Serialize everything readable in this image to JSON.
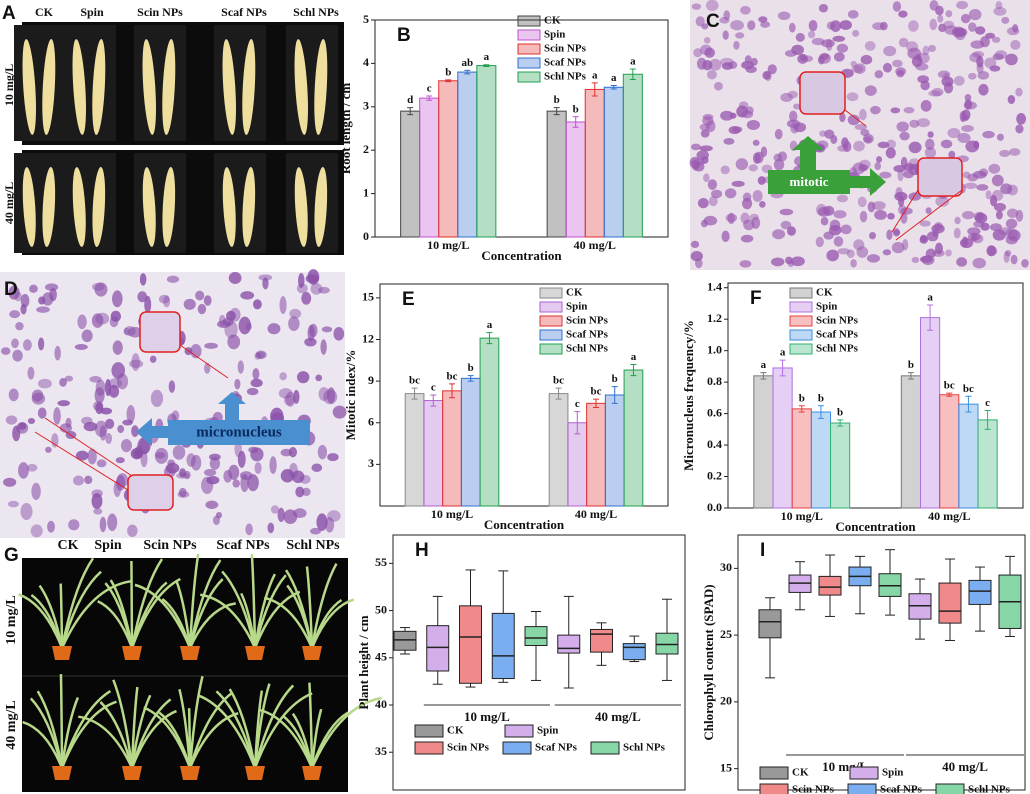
{
  "images": [
    {
      "panel": "A",
      "columns": [
        "CK",
        "Spin",
        "Scin NPs",
        "Scaf NPs",
        "Schl NPs"
      ],
      "rows": [
        "10 mg/L",
        "40 mg/L"
      ]
    },
    {
      "panel": "C",
      "label": "mitotic"
    },
    {
      "panel": "D",
      "label": "micronucleus"
    },
    {
      "panel": "G",
      "columns": [
        "CK",
        "Spin",
        "Scin NPs",
        "Scaf NPs",
        "Schl NPs"
      ],
      "rows": [
        "10 mg/L",
        "40 mg/L"
      ]
    }
  ],
  "chart_data": [
    {
      "type": "bar",
      "panel": "B",
      "x_label": "Concentration",
      "y_label": "Root length / cm",
      "categories": [
        "10 mg/L",
        "40 mg/L"
      ],
      "ylim": [
        0,
        5
      ],
      "yticks": [
        0,
        1,
        2,
        3,
        4,
        5
      ],
      "legend": "top",
      "series": [
        {
          "name": "CK",
          "color": "#444444",
          "values": [
            2.9,
            2.9
          ],
          "errors": [
            0.08,
            0.08
          ],
          "letters": [
            "d",
            "b"
          ]
        },
        {
          "name": "Spin",
          "color": "#c050d0",
          "values": [
            3.2,
            2.65
          ],
          "errors": [
            0.05,
            0.12
          ],
          "letters": [
            "c",
            "b"
          ]
        },
        {
          "name": "Scin NPs",
          "color": "#e03030",
          "values": [
            3.6,
            3.4
          ],
          "errors": [
            0.02,
            0.15
          ],
          "letters": [
            "b",
            "a"
          ]
        },
        {
          "name": "Scaf NPs",
          "color": "#2f6fd0",
          "values": [
            3.8,
            3.45
          ],
          "errors": [
            0.04,
            0.04
          ],
          "letters": [
            "ab",
            "a"
          ]
        },
        {
          "name": "Schl NPs",
          "color": "#20a050",
          "values": [
            3.95,
            3.75
          ],
          "errors": [
            0.02,
            0.12
          ],
          "letters": [
            "a",
            "a"
          ]
        }
      ]
    },
    {
      "type": "bar",
      "panel": "E",
      "x_label": "Concentration",
      "y_label": "Mitotic index/%",
      "categories": [
        "10 mg/L",
        "40 mg/L"
      ],
      "ylim": [
        0,
        16
      ],
      "yticks": [
        3,
        6,
        9,
        12,
        15
      ],
      "legend": "top-right",
      "series": [
        {
          "name": "CK",
          "color": "#888888",
          "values": [
            8.1,
            8.1
          ],
          "errors": [
            0.4,
            0.4
          ],
          "letters": [
            "bc",
            "bc"
          ]
        },
        {
          "name": "Spin",
          "color": "#b060d0",
          "values": [
            7.6,
            6.0
          ],
          "errors": [
            0.4,
            0.8
          ],
          "letters": [
            "c",
            "c"
          ]
        },
        {
          "name": "Scin NPs",
          "color": "#e03030",
          "values": [
            8.3,
            7.4
          ],
          "errors": [
            0.5,
            0.3
          ],
          "letters": [
            "bc",
            "bc"
          ]
        },
        {
          "name": "Scaf NPs",
          "color": "#2f6fd0",
          "values": [
            9.2,
            8.0
          ],
          "errors": [
            0.2,
            0.6
          ],
          "letters": [
            "b",
            "b"
          ]
        },
        {
          "name": "Schl NPs",
          "color": "#20a050",
          "values": [
            12.1,
            9.8
          ],
          "errors": [
            0.4,
            0.4
          ],
          "letters": [
            "a",
            "a"
          ]
        }
      ]
    },
    {
      "type": "bar",
      "panel": "F",
      "x_label": "Concentration",
      "y_label": "Micronucleus frequency/%",
      "categories": [
        "10 mg/L",
        "40 mg/L"
      ],
      "ylim": [
        0,
        1.43
      ],
      "yticks": [
        {
          "value": 0,
          "label": "0.0"
        },
        0.2,
        0.4,
        0.6,
        0.8,
        {
          "value": 1,
          "label": "1.0"
        },
        1.2,
        1.4
      ],
      "legend": "top",
      "series": [
        {
          "name": "CK",
          "color": "#777777",
          "values": [
            0.84,
            0.84
          ],
          "errors": [
            0.02,
            0.02
          ],
          "letters": [
            "a",
            "b"
          ]
        },
        {
          "name": "Spin",
          "color": "#b070e0",
          "values": [
            0.89,
            1.21
          ],
          "errors": [
            0.05,
            0.08
          ],
          "letters": [
            "a",
            "a"
          ]
        },
        {
          "name": "Scin NPs",
          "color": "#e84040",
          "values": [
            0.63,
            0.72
          ],
          "errors": [
            0.02,
            0.01
          ],
          "letters": [
            "b",
            "bc"
          ]
        },
        {
          "name": "Scaf NPs",
          "color": "#3a8ee0",
          "values": [
            0.61,
            0.66
          ],
          "errors": [
            0.04,
            0.05
          ],
          "letters": [
            "b",
            "bc"
          ]
        },
        {
          "name": "Schl NPs",
          "color": "#30b070",
          "values": [
            0.54,
            0.56
          ],
          "errors": [
            0.02,
            0.06
          ],
          "letters": [
            "b",
            "c"
          ]
        }
      ]
    },
    {
      "type": "box",
      "panel": "H",
      "y_label": "Plant height / cm",
      "groups": [
        "10 mg/L",
        "40 mg/L"
      ],
      "ylim": [
        31,
        58
      ],
      "yticks": [
        35,
        40,
        45,
        50,
        55
      ],
      "legend": "bottom",
      "series": [
        {
          "name": "CK",
          "color": "#999999",
          "boxes": [
            {
              "min": 45.4,
              "q1": 45.8,
              "median": 46.9,
              "q3": 47.8,
              "max": 48.2
            }
          ]
        },
        {
          "name": "Spin",
          "color": "#d4aeea",
          "boxes": [
            {
              "min": 42.2,
              "q1": 43.6,
              "median": 46.1,
              "q3": 48.4,
              "max": 51.5
            },
            {
              "min": 41.8,
              "q1": 45.5,
              "median": 46.0,
              "q3": 47.4,
              "max": 51.5
            }
          ]
        },
        {
          "name": "Scin NPs",
          "color": "#f08a8a",
          "boxes": [
            {
              "min": 41.9,
              "q1": 42.3,
              "median": 47.2,
              "q3": 50.5,
              "max": 54.3
            },
            {
              "min": 44.2,
              "q1": 45.6,
              "median": 47.5,
              "q3": 48.0,
              "max": 48.7
            }
          ]
        },
        {
          "name": "Scaf NPs",
          "color": "#7aaef0",
          "boxes": [
            {
              "min": 42.4,
              "q1": 42.8,
              "median": 45.2,
              "q3": 49.7,
              "max": 54.2
            },
            {
              "min": 44.6,
              "q1": 44.8,
              "median": 46.1,
              "q3": 46.5,
              "max": 47.3
            }
          ]
        },
        {
          "name": "Schl NPs",
          "color": "#86d6a6",
          "boxes": [
            {
              "min": 42.6,
              "q1": 46.3,
              "median": 47.1,
              "q3": 48.3,
              "max": 49.9
            },
            {
              "min": 42.6,
              "q1": 45.4,
              "median": 46.4,
              "q3": 47.6,
              "max": 51.2
            }
          ]
        }
      ]
    },
    {
      "type": "box",
      "panel": "I",
      "y_label": "Chlorophyll content (SPAD)",
      "groups": [
        "10 mg/L",
        "40 mg/L"
      ],
      "ylim": [
        13.4,
        32.5
      ],
      "yticks": [
        15,
        20,
        25,
        30
      ],
      "legend": "bottom",
      "series": [
        {
          "name": "CK",
          "color": "#999999",
          "boxes": [
            {
              "min": 21.8,
              "q1": 24.8,
              "median": 26.0,
              "q3": 26.9,
              "max": 27.8
            }
          ]
        },
        {
          "name": "Spin",
          "color": "#d4aeea",
          "boxes": [
            {
              "min": 26.9,
              "q1": 28.2,
              "median": 28.9,
              "q3": 29.5,
              "max": 30.5
            },
            {
              "min": 24.7,
              "q1": 26.2,
              "median": 27.2,
              "q3": 28.1,
              "max": 29.2
            }
          ]
        },
        {
          "name": "Scin NPs",
          "color": "#f08a8a",
          "boxes": [
            {
              "min": 26.4,
              "q1": 28.0,
              "median": 28.6,
              "q3": 29.4,
              "max": 31.0
            },
            {
              "min": 24.6,
              "q1": 25.9,
              "median": 26.8,
              "q3": 28.9,
              "max": 30.7
            }
          ]
        },
        {
          "name": "Scaf NPs",
          "color": "#7aaef0",
          "boxes": [
            {
              "min": 26.6,
              "q1": 28.7,
              "median": 29.4,
              "q3": 30.1,
              "max": 30.9
            },
            {
              "min": 25.3,
              "q1": 27.3,
              "median": 28.3,
              "q3": 29.1,
              "max": 30.1
            }
          ]
        },
        {
          "name": "Schl NPs",
          "color": "#86d6a6",
          "boxes": [
            {
              "min": 26.5,
              "q1": 27.9,
              "median": 28.7,
              "q3": 29.6,
              "max": 31.4
            },
            {
              "min": 24.9,
              "q1": 25.5,
              "median": 27.5,
              "q3": 29.5,
              "max": 30.9
            }
          ]
        }
      ]
    }
  ]
}
